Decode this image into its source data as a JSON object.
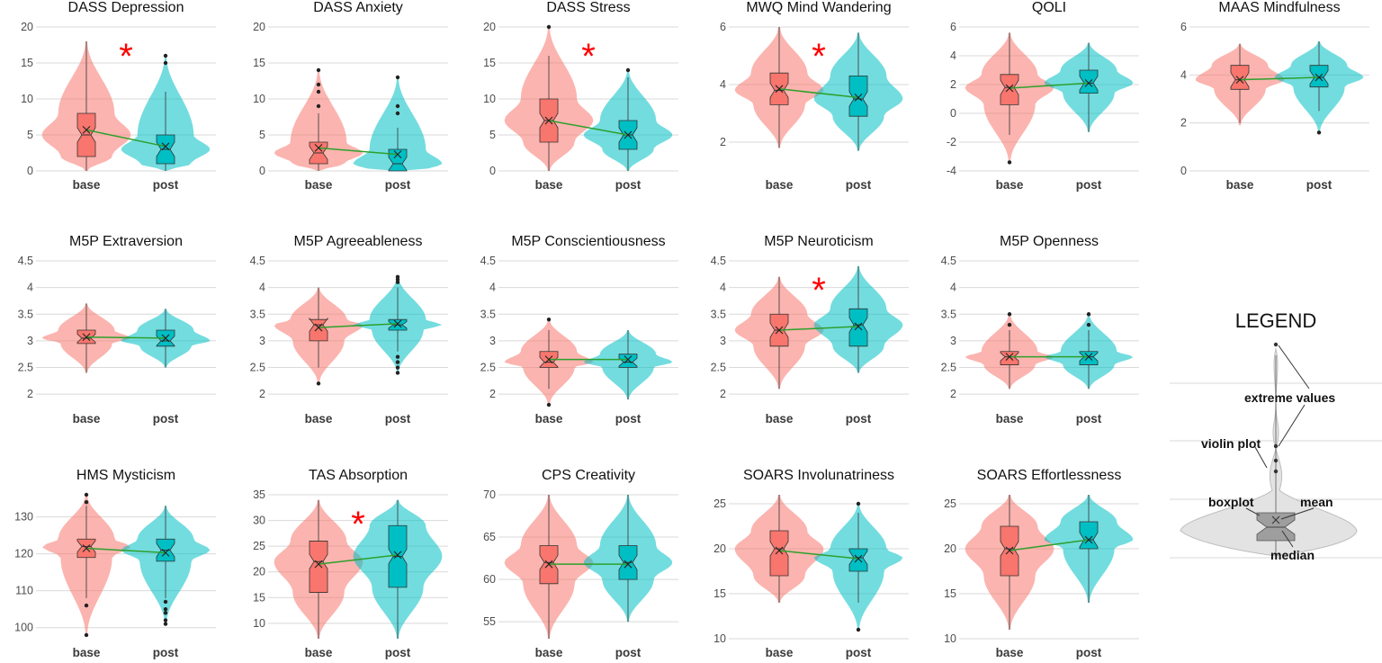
{
  "colors": {
    "base": "#f8766d",
    "post": "#00bfc4",
    "mean_line": "#2ca02c",
    "significance": "#ff0000"
  },
  "significance_marker": "*",
  "legend": {
    "title": "LEGEND",
    "labels": [
      "extreme values",
      "violin plot",
      "boxplot",
      "mean",
      "median"
    ]
  },
  "chart_data": [
    {
      "type": "violin",
      "title": "DASS Depression",
      "categories": [
        "base",
        "post"
      ],
      "yticks": [
        0,
        5,
        10,
        15,
        20
      ],
      "ylim": [
        0,
        20
      ],
      "significant": true,
      "groups": [
        {
          "name": "base",
          "min": 0,
          "q1": 2,
          "median": 5,
          "q3": 8,
          "max": 18,
          "mean": 5.7,
          "vmin": 0,
          "vmax": 18,
          "outliers": []
        },
        {
          "name": "post",
          "min": 0,
          "q1": 1,
          "median": 3,
          "q3": 5,
          "max": 11,
          "mean": 3.4,
          "vmin": 0,
          "vmax": 16,
          "outliers": [
            15,
            16
          ]
        }
      ]
    },
    {
      "type": "violin",
      "title": "DASS Anxiety",
      "categories": [
        "base",
        "post"
      ],
      "yticks": [
        0,
        5,
        10,
        15,
        20
      ],
      "ylim": [
        0,
        20
      ],
      "significant": false,
      "groups": [
        {
          "name": "base",
          "min": 0,
          "q1": 1,
          "median": 2.5,
          "q3": 4,
          "max": 8,
          "mean": 3.2,
          "vmin": 0,
          "vmax": 14,
          "outliers": [
            9,
            11,
            12,
            14
          ]
        },
        {
          "name": "post",
          "min": 0,
          "q1": 0,
          "median": 1,
          "q3": 3,
          "max": 6,
          "mean": 2.3,
          "vmin": 0,
          "vmax": 13,
          "outliers": [
            8,
            9,
            13
          ]
        }
      ]
    },
    {
      "type": "violin",
      "title": "DASS Stress",
      "categories": [
        "base",
        "post"
      ],
      "yticks": [
        0,
        5,
        10,
        15,
        20
      ],
      "ylim": [
        0,
        20
      ],
      "significant": true,
      "groups": [
        {
          "name": "base",
          "min": 0,
          "q1": 4,
          "median": 7,
          "q3": 10,
          "max": 16,
          "mean": 7.0,
          "vmin": 0,
          "vmax": 20,
          "outliers": [
            20
          ]
        },
        {
          "name": "post",
          "min": 0,
          "q1": 3,
          "median": 5,
          "q3": 7,
          "max": 13,
          "mean": 5.0,
          "vmin": 0,
          "vmax": 14,
          "outliers": [
            14
          ]
        }
      ]
    },
    {
      "type": "violin",
      "title": "MWQ Mind Wandering",
      "categories": [
        "base",
        "post"
      ],
      "yticks": [
        2,
        4,
        6
      ],
      "ylim": [
        1,
        6
      ],
      "significant": true,
      "groups": [
        {
          "name": "base",
          "min": 1.8,
          "q1": 3.3,
          "median": 3.8,
          "q3": 4.4,
          "max": 6.0,
          "mean": 3.85,
          "vmin": 1.8,
          "vmax": 6.0,
          "outliers": []
        },
        {
          "name": "post",
          "min": 1.7,
          "q1": 2.9,
          "median": 3.5,
          "q3": 4.3,
          "max": 5.8,
          "mean": 3.55,
          "vmin": 1.7,
          "vmax": 5.8,
          "outliers": []
        }
      ]
    },
    {
      "type": "violin",
      "title": "QOLI",
      "categories": [
        "base",
        "post"
      ],
      "yticks": [
        -4,
        -2,
        0,
        2,
        4,
        6
      ],
      "ylim": [
        -4,
        6
      ],
      "significant": false,
      "groups": [
        {
          "name": "base",
          "min": -1.5,
          "q1": 0.6,
          "median": 1.8,
          "q3": 2.7,
          "max": 5.6,
          "mean": 1.75,
          "vmin": -3.4,
          "vmax": 5.6,
          "outliers": [
            -3.4
          ]
        },
        {
          "name": "post",
          "min": -1.3,
          "q1": 1.4,
          "median": 2.1,
          "q3": 3.0,
          "max": 4.9,
          "mean": 2.1,
          "vmin": -1.3,
          "vmax": 4.9,
          "outliers": []
        }
      ]
    },
    {
      "type": "violin",
      "title": "MAAS Mindfulness",
      "categories": [
        "base",
        "post"
      ],
      "yticks": [
        0,
        2,
        4,
        6
      ],
      "ylim": [
        0,
        6
      ],
      "significant": false,
      "groups": [
        {
          "name": "base",
          "min": 2.0,
          "q1": 3.4,
          "median": 3.8,
          "q3": 4.4,
          "max": 5.3,
          "mean": 3.8,
          "vmin": 1.9,
          "vmax": 5.3,
          "outliers": []
        },
        {
          "name": "post",
          "min": 2.5,
          "q1": 3.5,
          "median": 3.9,
          "q3": 4.4,
          "max": 5.4,
          "mean": 3.9,
          "vmin": 1.6,
          "vmax": 5.4,
          "outliers": [
            1.6
          ]
        }
      ]
    },
    {
      "type": "violin",
      "title": "M5P Extraversion",
      "categories": [
        "base",
        "post"
      ],
      "yticks": [
        2.0,
        2.5,
        3.0,
        3.5,
        4.0,
        4.5
      ],
      "ylim": [
        1.8,
        4.5
      ],
      "significant": false,
      "groups": [
        {
          "name": "base",
          "min": 2.4,
          "q1": 2.95,
          "median": 3.05,
          "q3": 3.2,
          "max": 3.7,
          "mean": 3.07,
          "vmin": 2.4,
          "vmax": 3.7,
          "outliers": []
        },
        {
          "name": "post",
          "min": 2.5,
          "q1": 2.9,
          "median": 3.0,
          "q3": 3.2,
          "max": 3.6,
          "mean": 3.05,
          "vmin": 2.5,
          "vmax": 3.6,
          "outliers": []
        }
      ]
    },
    {
      "type": "violin",
      "title": "M5P Agreeableness",
      "categories": [
        "base",
        "post"
      ],
      "yticks": [
        2.0,
        2.5,
        3.0,
        3.5,
        4.0,
        4.5
      ],
      "ylim": [
        1.8,
        4.5
      ],
      "significant": false,
      "groups": [
        {
          "name": "base",
          "min": 2.5,
          "q1": 3.0,
          "median": 3.3,
          "q3": 3.4,
          "max": 4.0,
          "mean": 3.25,
          "vmin": 2.2,
          "vmax": 4.0,
          "outliers": [
            2.2
          ]
        },
        {
          "name": "post",
          "min": 2.8,
          "q1": 3.2,
          "median": 3.3,
          "q3": 3.4,
          "max": 4.0,
          "mean": 3.32,
          "vmin": 2.4,
          "vmax": 4.2,
          "outliers": [
            2.4,
            2.5,
            2.6,
            2.7,
            4.1,
            4.15,
            4.2
          ]
        }
      ]
    },
    {
      "type": "violin",
      "title": "M5P Conscientiousness",
      "categories": [
        "base",
        "post"
      ],
      "yticks": [
        2.0,
        2.5,
        3.0,
        3.5,
        4.0,
        4.5
      ],
      "ylim": [
        1.8,
        4.5
      ],
      "significant": false,
      "groups": [
        {
          "name": "base",
          "min": 2.1,
          "q1": 2.5,
          "median": 2.6,
          "q3": 2.8,
          "max": 3.2,
          "mean": 2.65,
          "vmin": 1.8,
          "vmax": 3.4,
          "outliers": [
            1.8,
            3.4
          ]
        },
        {
          "name": "post",
          "min": 1.9,
          "q1": 2.5,
          "median": 2.6,
          "q3": 2.75,
          "max": 3.2,
          "mean": 2.65,
          "vmin": 1.9,
          "vmax": 3.2,
          "outliers": []
        }
      ]
    },
    {
      "type": "violin",
      "title": "M5P Neuroticism",
      "categories": [
        "base",
        "post"
      ],
      "yticks": [
        2.0,
        2.5,
        3.0,
        3.5,
        4.0,
        4.5
      ],
      "ylim": [
        1.8,
        4.5
      ],
      "significant": true,
      "groups": [
        {
          "name": "base",
          "min": 2.1,
          "q1": 2.9,
          "median": 3.2,
          "q3": 3.5,
          "max": 4.2,
          "mean": 3.2,
          "vmin": 2.1,
          "vmax": 4.2,
          "outliers": []
        },
        {
          "name": "post",
          "min": 2.4,
          "q1": 2.9,
          "median": 3.3,
          "q3": 3.6,
          "max": 4.4,
          "mean": 3.27,
          "vmin": 2.4,
          "vmax": 4.4,
          "outliers": []
        }
      ]
    },
    {
      "type": "violin",
      "title": "M5P Openness",
      "categories": [
        "base",
        "post"
      ],
      "yticks": [
        2.0,
        2.5,
        3.0,
        3.5,
        4.0,
        4.5
      ],
      "ylim": [
        1.8,
        4.5
      ],
      "significant": false,
      "groups": [
        {
          "name": "base",
          "min": 2.1,
          "q1": 2.55,
          "median": 2.7,
          "q3": 2.8,
          "max": 3.2,
          "mean": 2.7,
          "vmin": 2.1,
          "vmax": 3.5,
          "outliers": [
            3.3,
            3.5
          ]
        },
        {
          "name": "post",
          "min": 2.1,
          "q1": 2.55,
          "median": 2.7,
          "q3": 2.8,
          "max": 3.2,
          "mean": 2.7,
          "vmin": 2.1,
          "vmax": 3.5,
          "outliers": [
            3.3,
            3.5
          ]
        }
      ]
    },
    {
      "type": "violin",
      "title": "HMS Mysticism",
      "categories": [
        "base",
        "post"
      ],
      "yticks": [
        100,
        110,
        120,
        130
      ],
      "ylim": [
        97,
        136
      ],
      "significant": false,
      "groups": [
        {
          "name": "base",
          "min": 108,
          "q1": 119,
          "median": 122,
          "q3": 124,
          "max": 133,
          "mean": 121.5,
          "vmin": 98,
          "vmax": 136,
          "outliers": [
            98,
            106,
            134,
            136
          ]
        },
        {
          "name": "post",
          "min": 108,
          "q1": 118,
          "median": 121,
          "q3": 124,
          "max": 133,
          "mean": 120.3,
          "vmin": 101,
          "vmax": 133,
          "outliers": [
            101,
            102,
            104,
            105,
            107
          ]
        }
      ]
    },
    {
      "type": "violin",
      "title": "TAS Absorption",
      "categories": [
        "base",
        "post"
      ],
      "yticks": [
        10,
        15,
        20,
        25,
        30,
        35
      ],
      "ylim": [
        7,
        35
      ],
      "significant": true,
      "groups": [
        {
          "name": "base",
          "min": 7,
          "q1": 16,
          "median": 22,
          "q3": 26,
          "max": 34,
          "mean": 21.5,
          "vmin": 7,
          "vmax": 34,
          "outliers": []
        },
        {
          "name": "post",
          "min": 7,
          "q1": 17,
          "median": 23,
          "q3": 29,
          "max": 34,
          "mean": 23.3,
          "vmin": 7,
          "vmax": 34,
          "outliers": []
        }
      ]
    },
    {
      "type": "violin",
      "title": "CPS Creativity",
      "categories": [
        "base",
        "post"
      ],
      "yticks": [
        55,
        60,
        65,
        70
      ],
      "ylim": [
        53,
        70
      ],
      "significant": false,
      "groups": [
        {
          "name": "base",
          "min": 53,
          "q1": 59.5,
          "median": 62,
          "q3": 64,
          "max": 70,
          "mean": 61.8,
          "vmin": 53,
          "vmax": 70,
          "outliers": []
        },
        {
          "name": "post",
          "min": 55,
          "q1": 60,
          "median": 62,
          "q3": 64,
          "max": 70,
          "mean": 61.8,
          "vmin": 55,
          "vmax": 70,
          "outliers": []
        }
      ]
    },
    {
      "type": "violin",
      "title": "SOARS Involunatriness",
      "categories": [
        "base",
        "post"
      ],
      "yticks": [
        10,
        15,
        20,
        25
      ],
      "ylim": [
        10,
        26
      ],
      "significant": false,
      "groups": [
        {
          "name": "base",
          "min": 14,
          "q1": 17,
          "median": 20,
          "q3": 22,
          "max": 26,
          "mean": 19.8,
          "vmin": 14,
          "vmax": 26,
          "outliers": []
        },
        {
          "name": "post",
          "min": 14,
          "q1": 17.5,
          "median": 19,
          "q3": 20,
          "max": 24,
          "mean": 18.9,
          "vmin": 11,
          "vmax": 25,
          "outliers": [
            11,
            25
          ]
        }
      ]
    },
    {
      "type": "violin",
      "title": "SOARS Effortlessness",
      "categories": [
        "base",
        "post"
      ],
      "yticks": [
        10,
        15,
        20,
        25
      ],
      "ylim": [
        10,
        26
      ],
      "significant": false,
      "groups": [
        {
          "name": "base",
          "min": 11,
          "q1": 17,
          "median": 20,
          "q3": 22.5,
          "max": 26,
          "mean": 19.8,
          "vmin": 11,
          "vmax": 26,
          "outliers": []
        },
        {
          "name": "post",
          "min": 14,
          "q1": 20,
          "median": 21,
          "q3": 23,
          "max": 26,
          "mean": 21.0,
          "vmin": 14,
          "vmax": 26,
          "outliers": []
        }
      ]
    }
  ]
}
